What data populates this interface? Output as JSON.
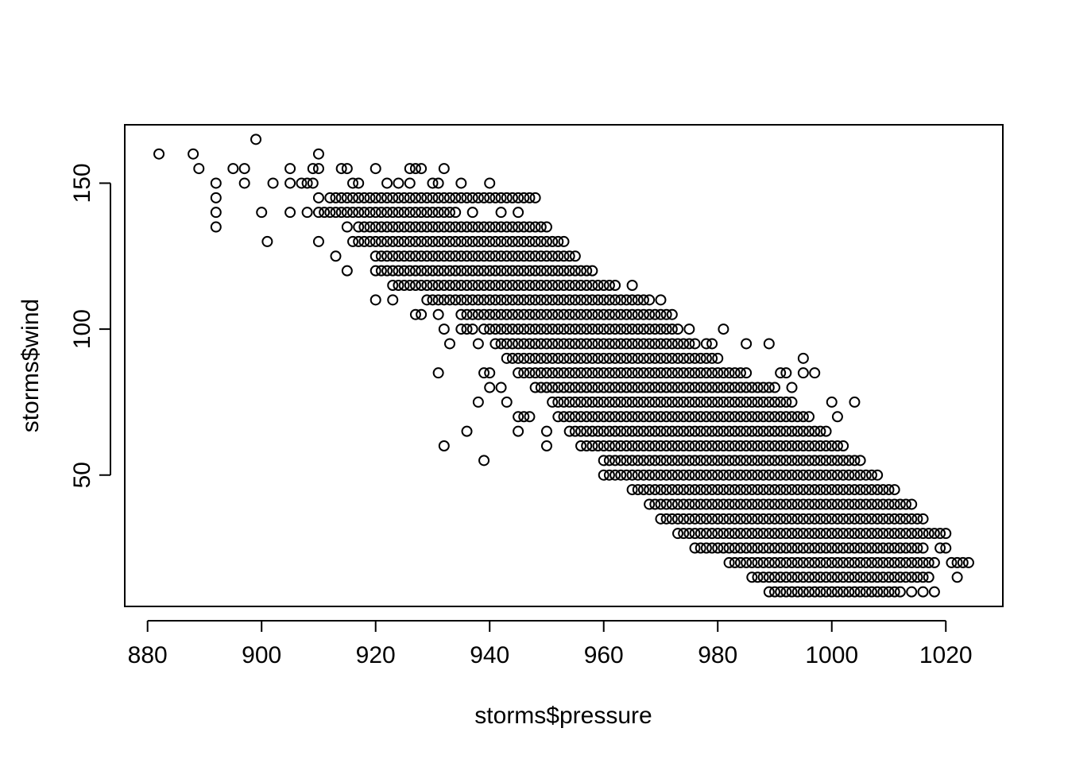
{
  "chart_data": {
    "type": "scatter",
    "title": "",
    "xlabel": "storms$pressure",
    "ylabel": "storms$wind",
    "xlim": [
      876,
      1030
    ],
    "ylim": [
      5,
      170
    ],
    "xticks": [
      880,
      900,
      920,
      940,
      960,
      980,
      1000,
      1020
    ],
    "yticks": [
      50,
      100,
      150
    ],
    "grid": false,
    "legend": "none",
    "colors": {
      "point": "#000000",
      "axis": "#000000",
      "background": "#ffffff"
    },
    "points": [
      [
        882,
        160
      ],
      [
        888,
        160
      ],
      [
        889,
        155
      ],
      [
        899,
        165
      ],
      [
        892,
        150
      ],
      [
        892,
        145
      ],
      [
        892,
        140
      ],
      [
        892,
        135
      ],
      [
        895,
        155
      ],
      [
        897,
        155
      ],
      [
        897,
        150
      ],
      [
        900,
        140
      ],
      [
        901,
        130
      ],
      [
        902,
        150
      ],
      [
        905,
        155
      ],
      [
        905,
        150
      ],
      [
        905,
        140
      ],
      [
        907,
        150
      ],
      [
        908,
        150
      ],
      [
        908,
        140
      ],
      [
        909,
        155
      ],
      [
        909,
        150
      ],
      [
        910,
        160
      ],
      [
        910,
        155
      ],
      [
        910,
        145
      ],
      [
        910,
        140
      ],
      [
        910,
        130
      ],
      [
        912,
        145
      ],
      [
        913,
        125
      ],
      [
        914,
        155
      ],
      [
        915,
        155
      ],
      [
        915,
        135
      ],
      [
        915,
        120
      ],
      [
        916,
        150
      ],
      [
        916,
        130
      ],
      [
        917,
        150
      ],
      [
        917,
        135
      ],
      [
        918,
        140
      ],
      [
        919,
        140
      ],
      [
        920,
        155
      ],
      [
        920,
        140
      ],
      [
        920,
        125
      ],
      [
        920,
        120
      ],
      [
        920,
        110
      ],
      [
        921,
        120
      ],
      [
        922,
        150
      ],
      [
        922,
        125
      ],
      [
        923,
        110
      ],
      [
        924,
        150
      ],
      [
        924,
        115
      ],
      [
        926,
        155
      ],
      [
        926,
        150
      ],
      [
        926,
        120
      ],
      [
        926,
        115
      ],
      [
        927,
        155
      ],
      [
        927,
        115
      ],
      [
        928,
        155
      ],
      [
        927,
        105
      ],
      [
        928,
        105
      ],
      [
        929,
        140
      ],
      [
        930,
        150
      ],
      [
        931,
        150
      ],
      [
        931,
        105
      ],
      [
        931,
        85
      ],
      [
        932,
        155
      ],
      [
        932,
        100
      ],
      [
        932,
        60
      ],
      [
        933,
        95
      ],
      [
        934,
        145
      ],
      [
        935,
        150
      ],
      [
        935,
        105
      ],
      [
        935,
        100
      ],
      [
        936,
        100
      ],
      [
        936,
        65
      ],
      [
        937,
        140
      ],
      [
        937,
        105
      ],
      [
        937,
        100
      ],
      [
        938,
        95
      ],
      [
        938,
        75
      ],
      [
        939,
        85
      ],
      [
        939,
        55
      ],
      [
        940,
        150
      ],
      [
        940,
        85
      ],
      [
        940,
        80
      ],
      [
        942,
        145
      ],
      [
        942,
        140
      ],
      [
        942,
        95
      ],
      [
        942,
        80
      ],
      [
        943,
        75
      ],
      [
        944,
        135
      ],
      [
        945,
        140
      ],
      [
        945,
        135
      ],
      [
        945,
        70
      ],
      [
        945,
        65
      ],
      [
        946,
        70
      ],
      [
        947,
        70
      ],
      [
        950,
        65
      ],
      [
        950,
        60
      ],
      [
        953,
        130
      ],
      [
        955,
        125
      ],
      [
        956,
        60
      ],
      [
        957,
        60
      ],
      [
        960,
        55
      ],
      [
        960,
        50
      ],
      [
        961,
        50
      ],
      [
        964,
        50
      ],
      [
        965,
        115
      ],
      [
        968,
        110
      ],
      [
        968,
        45
      ],
      [
        970,
        110
      ],
      [
        971,
        40
      ],
      [
        972,
        40
      ],
      [
        973,
        40
      ],
      [
        975,
        100
      ],
      [
        978,
        95
      ],
      [
        979,
        95
      ],
      [
        980,
        30
      ],
      [
        981,
        100
      ],
      [
        981,
        30
      ],
      [
        985,
        95
      ],
      [
        985,
        30
      ],
      [
        986,
        30
      ],
      [
        989,
        95
      ],
      [
        991,
        85
      ],
      [
        992,
        85
      ],
      [
        993,
        80
      ],
      [
        995,
        85
      ],
      [
        995,
        90
      ],
      [
        997,
        85
      ],
      [
        998,
        15
      ],
      [
        1000,
        75
      ],
      [
        1001,
        70
      ],
      [
        1004,
        75
      ],
      [
        1005,
        10
      ],
      [
        1007,
        10
      ],
      [
        1008,
        10
      ],
      [
        1009,
        10
      ],
      [
        1010,
        10
      ],
      [
        1012,
        10
      ],
      [
        1014,
        10
      ],
      [
        1016,
        10
      ],
      [
        1017,
        15
      ],
      [
        1018,
        10
      ],
      [
        1019,
        30
      ],
      [
        1020,
        30
      ],
      [
        1019,
        25
      ],
      [
        1020,
        25
      ],
      [
        1021,
        20
      ],
      [
        1022,
        20
      ],
      [
        1022,
        15
      ],
      [
        1023,
        20
      ],
      [
        1024,
        20
      ]
    ],
    "bands": [
      [
        910,
        934,
        140
      ],
      [
        916,
        942,
        130
      ],
      [
        918,
        936,
        135
      ],
      [
        920,
        942,
        125
      ],
      [
        921,
        944,
        120
      ],
      [
        923,
        947,
        115
      ],
      [
        929,
        950,
        110
      ],
      [
        935,
        955,
        105
      ],
      [
        939,
        958,
        100
      ],
      [
        941,
        963,
        95
      ],
      [
        943,
        968,
        90
      ],
      [
        945,
        972,
        85
      ],
      [
        948,
        976,
        80
      ],
      [
        951,
        979,
        75
      ],
      [
        952,
        983,
        70
      ],
      [
        954,
        986,
        65
      ],
      [
        958,
        990,
        60
      ],
      [
        961,
        992,
        55
      ],
      [
        962,
        995,
        50
      ],
      [
        965,
        998,
        45
      ],
      [
        968,
        1001,
        40
      ],
      [
        970,
        1004,
        35
      ],
      [
        973,
        1006,
        30
      ],
      [
        976,
        1008,
        25
      ],
      [
        982,
        1010,
        20
      ],
      [
        986,
        1011,
        15
      ],
      [
        989,
        1012,
        10
      ],
      [
        924,
        948,
        145
      ],
      [
        913,
        931,
        145
      ],
      [
        945,
        972,
        105
      ],
      [
        948,
        973,
        100
      ],
      [
        950,
        976,
        95
      ],
      [
        952,
        980,
        90
      ],
      [
        955,
        985,
        85
      ],
      [
        958,
        990,
        80
      ],
      [
        961,
        993,
        75
      ],
      [
        964,
        996,
        70
      ],
      [
        967,
        999,
        65
      ],
      [
        970,
        1002,
        60
      ],
      [
        973,
        1005,
        55
      ],
      [
        976,
        1008,
        50
      ],
      [
        979,
        1011,
        45
      ],
      [
        982,
        1014,
        40
      ],
      [
        985,
        1016,
        35
      ],
      [
        988,
        1018,
        30
      ],
      [
        991,
        1016,
        25
      ],
      [
        995,
        1018,
        20
      ],
      [
        1000,
        1017,
        15
      ],
      [
        930,
        945,
        145
      ],
      [
        917,
        928,
        130
      ],
      [
        931,
        954,
        125
      ],
      [
        931,
        958,
        120
      ],
      [
        932,
        962,
        115
      ],
      [
        940,
        967,
        110
      ],
      [
        930,
        952,
        130
      ],
      [
        932,
        950,
        135
      ]
    ]
  }
}
